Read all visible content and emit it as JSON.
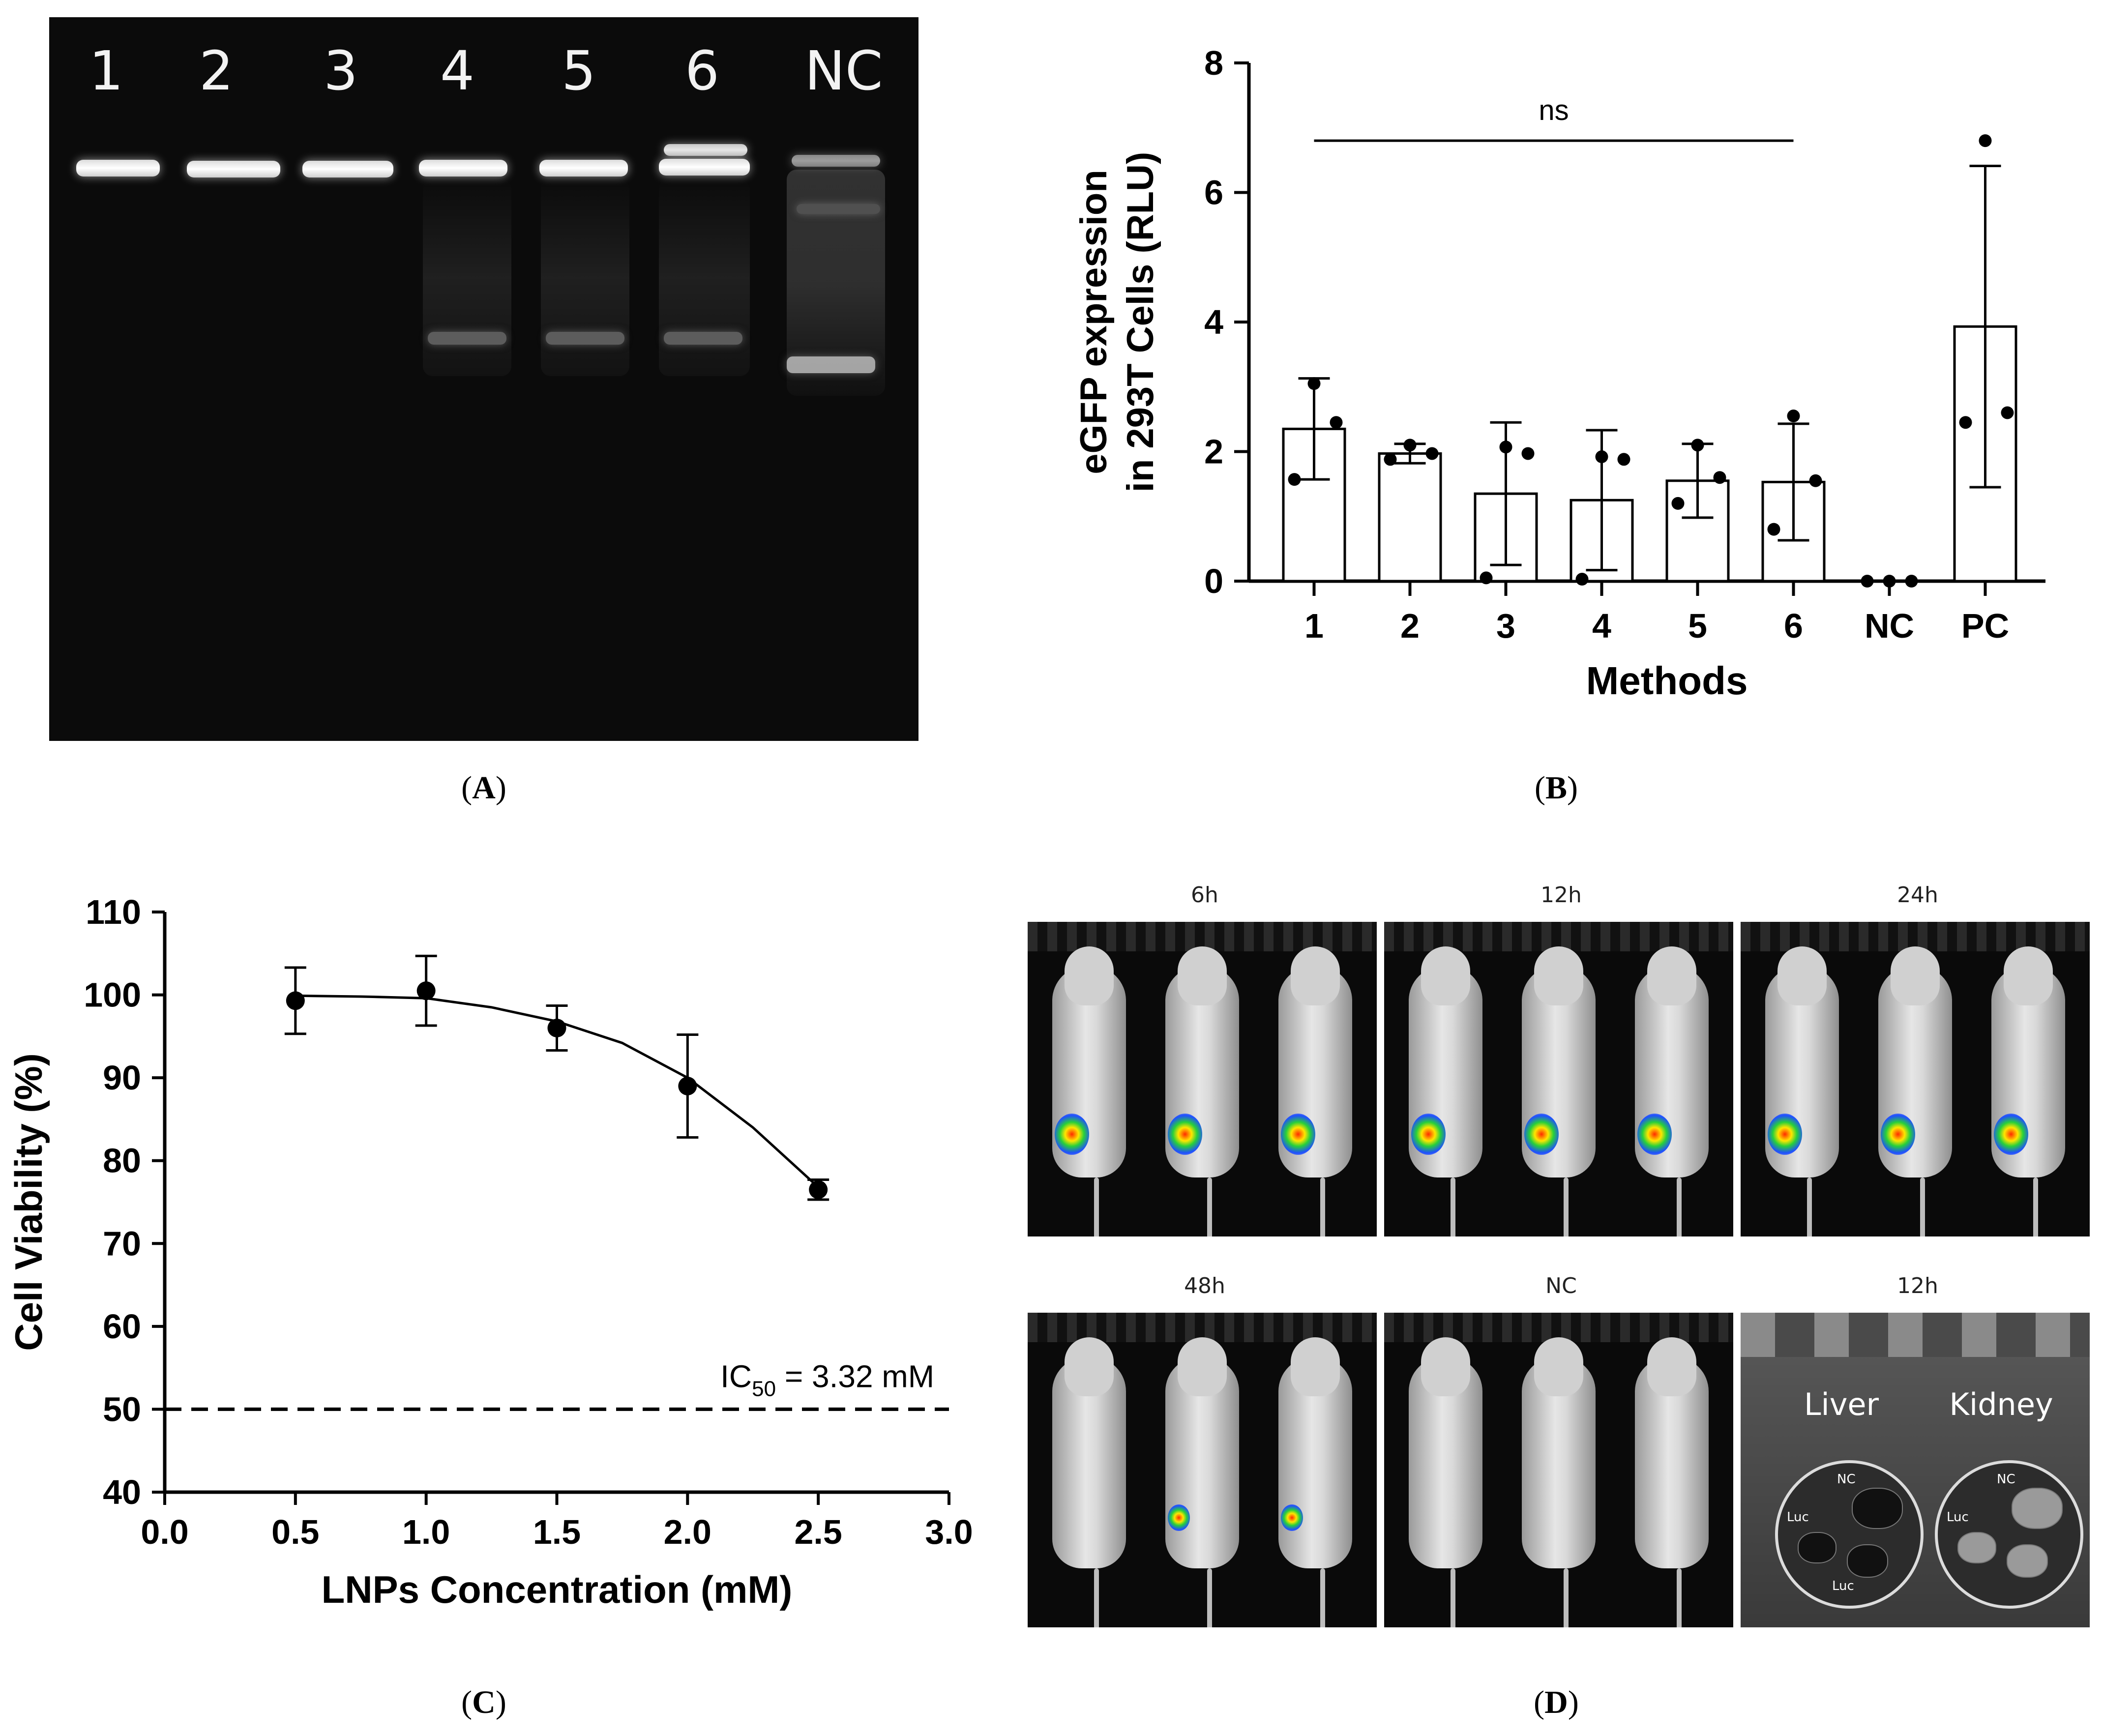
{
  "panels": {
    "A": {
      "label": "A"
    },
    "B": {
      "label": "B"
    },
    "C": {
      "label": "C"
    },
    "D": {
      "label": "D"
    }
  },
  "gel": {
    "lanes": [
      "1",
      "2",
      "3",
      "4",
      "5",
      "6",
      "NC"
    ]
  },
  "chart_data": [
    {
      "type": "bar",
      "panel": "B",
      "categories": [
        "1",
        "2",
        "3",
        "4",
        "5",
        "6",
        "NC",
        "PC"
      ],
      "values": [
        2.35,
        1.97,
        1.35,
        1.25,
        1.55,
        1.53,
        0.0,
        3.93
      ],
      "error": [
        0.78,
        0.15,
        1.1,
        1.08,
        0.57,
        0.9,
        0.0,
        2.48
      ],
      "points": [
        [
          3.05,
          2.45,
          1.57
        ],
        [
          2.1,
          1.97,
          1.88
        ],
        [
          2.07,
          1.97,
          0.05
        ],
        [
          1.92,
          1.88,
          0.03
        ],
        [
          2.1,
          1.6,
          1.2
        ],
        [
          2.55,
          1.55,
          0.8
        ],
        [
          0.0,
          0.0,
          0.0
        ],
        [
          6.8,
          2.6,
          2.45
        ]
      ],
      "xlabel": "Methods",
      "ylabel_line1": "eGFP expression",
      "ylabel_line2": "in 293T Cells (RLU)",
      "ylim": [
        0,
        8
      ],
      "yticks": [
        0,
        2,
        4,
        6,
        8
      ],
      "annotation": "ns",
      "annotation_span": [
        "1",
        "6"
      ],
      "annotation_y": 6.8
    },
    {
      "type": "scatter",
      "panel": "C",
      "x": [
        0.5,
        1.0,
        1.5,
        2.0,
        2.5
      ],
      "y": [
        99.3,
        100.5,
        96.0,
        89.0,
        76.5
      ],
      "error": [
        4.0,
        4.2,
        2.7,
        6.2,
        1.2
      ],
      "fit_curve": [
        [
          0.5,
          99.9
        ],
        [
          0.75,
          99.8
        ],
        [
          1.0,
          99.6
        ],
        [
          1.25,
          98.5
        ],
        [
          1.5,
          96.8
        ],
        [
          1.75,
          94.2
        ],
        [
          2.0,
          90.0
        ],
        [
          2.25,
          84.0
        ],
        [
          2.5,
          76.8
        ]
      ],
      "xlabel": "LNPs Concentration (mM)",
      "ylabel": "Cell Viability (%)",
      "xlim": [
        0.0,
        3.0
      ],
      "ylim": [
        40,
        110
      ],
      "xticks": [
        "0.0",
        "0.5",
        "1.0",
        "1.5",
        "2.0",
        "2.5",
        "3.0"
      ],
      "yticks": [
        40,
        50,
        60,
        70,
        80,
        90,
        100,
        110
      ],
      "reference_line_y": 50,
      "ic50_prefix": "IC",
      "ic50_sub": "50",
      "ic50_value": " = 3.32 mM"
    }
  ],
  "imaging": {
    "titles": [
      "6h",
      "12h",
      "24h",
      "48h",
      "NC",
      "12h"
    ],
    "organ_labels": [
      "Liver",
      "Kidney"
    ],
    "dish_labels": {
      "nc": "NC",
      "luc": "Luc"
    }
  }
}
